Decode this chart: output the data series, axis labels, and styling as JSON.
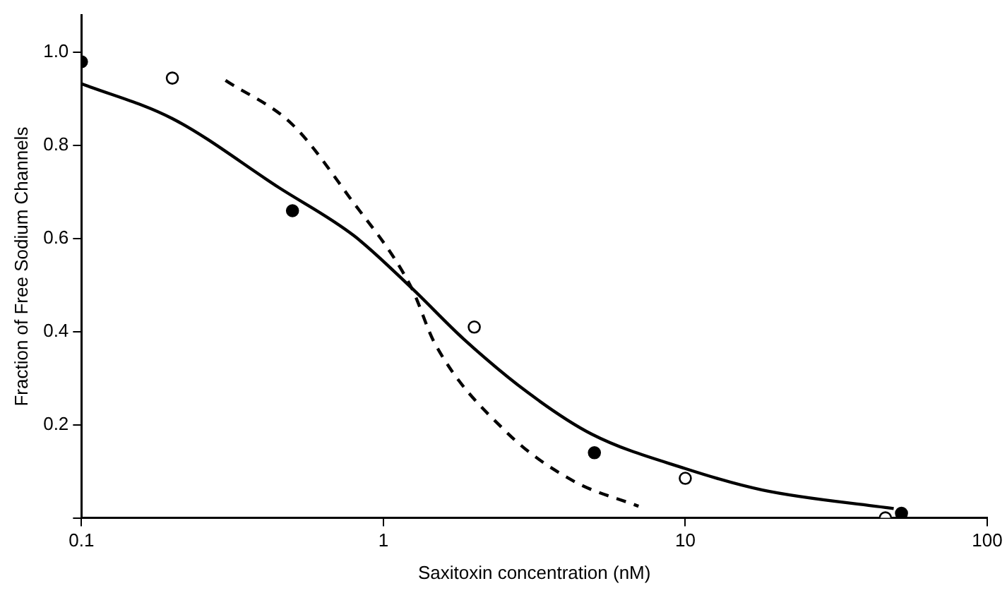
{
  "chart_data": {
    "type": "scatter",
    "xlabel": "Saxitoxin concentration (nM)",
    "ylabel": "Fraction of Free Sodium Channels",
    "log": "x",
    "grid": false,
    "legend": false,
    "xlim": [
      0.1,
      100
    ],
    "xticks": [
      0.1,
      1,
      10,
      100
    ],
    "ylim": [
      0,
      1.08
    ],
    "yticks": [
      {
        "value": 0,
        "label": null
      },
      0.2,
      0.4,
      0.6,
      0.8,
      {
        "value": 1,
        "label": "1.0"
      }
    ],
    "series": [
      {
        "type": "line",
        "color": "#000000",
        "marker": "none",
        "line_style": "solid",
        "x": [
          0.1,
          0.2,
          0.45,
          0.8,
          1.24,
          1.84,
          3,
          4.9,
          10,
          18,
          49
        ],
        "values": [
          0.933,
          0.858,
          0.71,
          0.606,
          0.494,
          0.385,
          0.27,
          0.18,
          0.106,
          0.06,
          0.02
        ]
      },
      {
        "type": "line",
        "color": "#000000",
        "marker": "none",
        "line_style": "dashed",
        "x": [
          0.3,
          0.5,
          0.77,
          1.24,
          1.48,
          2.55,
          4.24,
          7
        ],
        "values": [
          0.94,
          0.845,
          0.69,
          0.494,
          0.375,
          0.185,
          0.08,
          0.025
        ]
      },
      {
        "color": "#000000",
        "marker": "circle",
        "x": [
          0.1,
          0.5,
          5,
          52
        ],
        "values": [
          0.98,
          0.66,
          0.14,
          0.01
        ]
      },
      {
        "color": "#ffffff",
        "marker": "circle",
        "x": [
          0.2,
          2,
          10,
          46
        ],
        "values": [
          0.945,
          0.41,
          0.085,
          0.0
        ]
      }
    ]
  }
}
